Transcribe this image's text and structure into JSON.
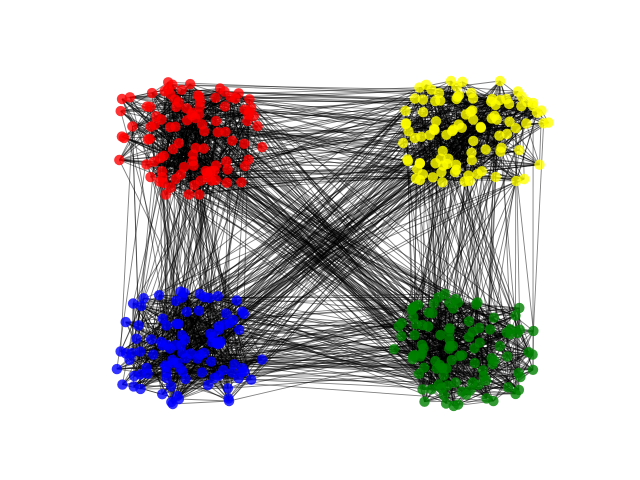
{
  "figure": {
    "kind": "network-graph",
    "axes_visible": false,
    "edge_color": "#000000",
    "edge_alpha": 0.5,
    "node_alpha": 0.8
  },
  "chart_data": {
    "type": "network",
    "title": "",
    "layout": "four-clusters",
    "clusters": [
      {
        "id": "red-cluster",
        "color": "#ff0000",
        "position": "top-left",
        "node_count": 100
      },
      {
        "id": "yellow-cluster",
        "color": "#ffff00",
        "position": "top-right",
        "node_count": 100
      },
      {
        "id": "blue-cluster",
        "color": "#0000ff",
        "position": "bottom-left",
        "node_count": 100
      },
      {
        "id": "green-cluster",
        "color": "#008000",
        "position": "bottom-right",
        "node_count": 100
      }
    ],
    "edges": {
      "intra_cluster": "dense",
      "inter_cluster": "many",
      "between_all_cluster_pairs": true
    }
  }
}
